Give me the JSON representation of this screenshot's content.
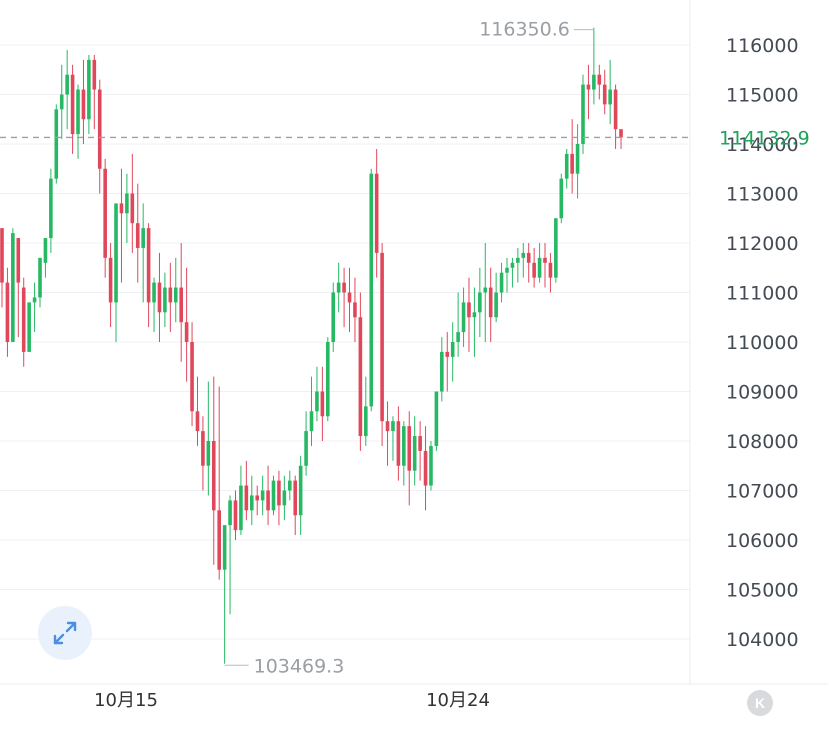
{
  "chart_data": {
    "type": "candlestick",
    "y_ticks": [
      "116000",
      "115000",
      "114000",
      "113000",
      "112000",
      "111000",
      "110000",
      "109000",
      "108000",
      "107000",
      "106000",
      "105000",
      "104000"
    ],
    "ylim": [
      103000,
      116600
    ],
    "x_ticks": [
      "10月15",
      "10月24"
    ],
    "current_price": "114132.9",
    "current_price_value": 114132.9,
    "high_label": "116350.6",
    "high_value": 116350.6,
    "low_label": "103469.3",
    "low_value": 103469.3,
    "colors": {
      "up": "#27b864",
      "down": "#e0475b",
      "grid": "#eef0f3",
      "axis_text": "#444b55",
      "price_line": "#9aa0a8"
    },
    "candles": [
      [
        112300,
        112300,
        111200,
        110700
      ],
      [
        111200,
        111500,
        110000,
        109700
      ],
      [
        110000,
        111300,
        112200,
        112300
      ],
      [
        112100,
        112100,
        111200,
        110100
      ],
      [
        111100,
        111300,
        109800,
        109500
      ],
      [
        109800,
        110800,
        110800,
        110000
      ],
      [
        110800,
        111200,
        110900,
        110200
      ],
      [
        110900,
        111600,
        111700,
        110700
      ],
      [
        111600,
        112000,
        112100,
        111300
      ],
      [
        112100,
        113500,
        113300,
        111800
      ],
      [
        113300,
        114800,
        114700,
        113200
      ],
      [
        114700,
        115600,
        115000,
        114100
      ],
      [
        115000,
        115900,
        115400,
        114300
      ],
      [
        115400,
        115600,
        114200,
        113800
      ],
      [
        114200,
        115200,
        115100,
        113700
      ],
      [
        115100,
        115700,
        114500,
        114000
      ],
      [
        114500,
        115800,
        115700,
        114200
      ],
      [
        115700,
        115800,
        115100,
        114300
      ],
      [
        115100,
        115300,
        113500,
        113000
      ],
      [
        113500,
        113700,
        111700,
        111300
      ],
      [
        111700,
        112000,
        110800,
        110300
      ],
      [
        110800,
        111200,
        112800,
        110000
      ],
      [
        112800,
        113500,
        112600,
        111200
      ],
      [
        112600,
        113400,
        113000,
        112000
      ],
      [
        113000,
        113800,
        112400,
        111800
      ],
      [
        112400,
        113200,
        111900,
        111200
      ],
      [
        111900,
        112800,
        112300,
        110800
      ],
      [
        112300,
        112400,
        110800,
        110300
      ],
      [
        110800,
        111300,
        111200,
        110200
      ],
      [
        111200,
        111800,
        110600,
        110000
      ],
      [
        110600,
        111400,
        111100,
        110300
      ],
      [
        111100,
        111600,
        110800,
        110200
      ],
      [
        110800,
        111700,
        111100,
        110400
      ],
      [
        111100,
        112000,
        110400,
        109600
      ],
      [
        110400,
        111500,
        110000,
        109200
      ],
      [
        110000,
        110400,
        108600,
        108300
      ],
      [
        108600,
        109300,
        108200,
        107900
      ],
      [
        108200,
        108500,
        107500,
        107000
      ],
      [
        107500,
        109200,
        108000,
        106900
      ],
      [
        108000,
        109300,
        106600,
        105500
      ],
      [
        106600,
        109100,
        105400,
        105200
      ],
      [
        105400,
        106200,
        106300,
        103500
      ],
      [
        106300,
        106900,
        106800,
        104500
      ],
      [
        106800,
        107000,
        106200,
        106000
      ],
      [
        106200,
        107500,
        107100,
        106100
      ],
      [
        107100,
        107600,
        106600,
        106400
      ],
      [
        106600,
        107300,
        106900,
        106300
      ],
      [
        106900,
        107100,
        106800,
        106500
      ],
      [
        106800,
        107300,
        107000,
        106500
      ],
      [
        107000,
        107500,
        106600,
        106300
      ],
      [
        106600,
        107300,
        107200,
        106500
      ],
      [
        107200,
        107400,
        106700,
        106300
      ],
      [
        106700,
        107300,
        107000,
        106400
      ],
      [
        107000,
        107400,
        107200,
        106800
      ],
      [
        107200,
        107300,
        106500,
        106100
      ],
      [
        106500,
        107700,
        107500,
        106100
      ],
      [
        107500,
        108600,
        108200,
        107300
      ],
      [
        108200,
        109300,
        108600,
        107900
      ],
      [
        108600,
        109500,
        109000,
        108400
      ],
      [
        109000,
        109500,
        108500,
        108000
      ],
      [
        108500,
        110100,
        110000,
        108400
      ],
      [
        110000,
        111200,
        111000,
        109800
      ],
      [
        111000,
        111600,
        111200,
        110600
      ],
      [
        111200,
        111500,
        111000,
        110300
      ],
      [
        111000,
        111500,
        110800,
        110200
      ],
      [
        110800,
        111300,
        110500,
        110000
      ],
      [
        110500,
        111000,
        108100,
        107800
      ],
      [
        108100,
        109300,
        108700,
        107900
      ],
      [
        108700,
        113500,
        113400,
        108600
      ],
      [
        113400,
        113900,
        111800,
        111300
      ],
      [
        111800,
        112000,
        108400,
        107900
      ],
      [
        108400,
        108800,
        108200,
        107500
      ],
      [
        108200,
        108500,
        108400,
        107600
      ],
      [
        108400,
        108700,
        107500,
        107200
      ],
      [
        107500,
        108400,
        108300,
        107100
      ],
      [
        108300,
        108600,
        107400,
        106700
      ],
      [
        107400,
        108500,
        108100,
        107100
      ],
      [
        108100,
        108400,
        107800,
        107200
      ],
      [
        107800,
        108300,
        107100,
        106600
      ],
      [
        107100,
        108000,
        107900,
        107000
      ],
      [
        107900,
        108900,
        109000,
        107800
      ],
      [
        109000,
        110100,
        109800,
        108800
      ],
      [
        109800,
        110200,
        109700,
        109000
      ],
      [
        109700,
        110400,
        110000,
        109200
      ],
      [
        110000,
        111000,
        110200,
        109700
      ],
      [
        110200,
        111100,
        110800,
        109900
      ],
      [
        110800,
        111300,
        110500,
        109800
      ],
      [
        110500,
        111100,
        110600,
        109700
      ],
      [
        110600,
        111500,
        111000,
        110100
      ],
      [
        111000,
        112000,
        111100,
        110000
      ],
      [
        111100,
        111500,
        110500,
        110000
      ],
      [
        110500,
        111400,
        111000,
        110400
      ],
      [
        111000,
        111600,
        111400,
        110800
      ],
      [
        111400,
        111700,
        111500,
        111000
      ],
      [
        111500,
        111700,
        111600,
        111100
      ],
      [
        111600,
        111900,
        111700,
        111200
      ],
      [
        111700,
        112000,
        111800,
        111300
      ],
      [
        111800,
        112000,
        111600,
        111200
      ],
      [
        111600,
        111900,
        111300,
        111100
      ],
      [
        111300,
        112000,
        111700,
        111200
      ],
      [
        111700,
        112000,
        111600,
        111100
      ],
      [
        111600,
        111800,
        111300,
        111000
      ],
      [
        111300,
        112500,
        112500,
        111200
      ],
      [
        112500,
        113400,
        113300,
        112400
      ],
      [
        113300,
        113900,
        113800,
        113100
      ],
      [
        113800,
        114500,
        113400,
        113000
      ],
      [
        113400,
        114400,
        114000,
        112900
      ],
      [
        114000,
        115400,
        115200,
        113800
      ],
      [
        115200,
        115600,
        115100,
        114500
      ],
      [
        115100,
        116350.6,
        115400,
        114800
      ],
      [
        115400,
        115600,
        115200,
        114900
      ],
      [
        115200,
        115500,
        114800,
        114600
      ],
      [
        114800,
        115700,
        115100,
        114400
      ],
      [
        115100,
        115200,
        114300,
        113900
      ],
      [
        114300,
        114200,
        114132.9,
        113900
      ]
    ]
  }
}
